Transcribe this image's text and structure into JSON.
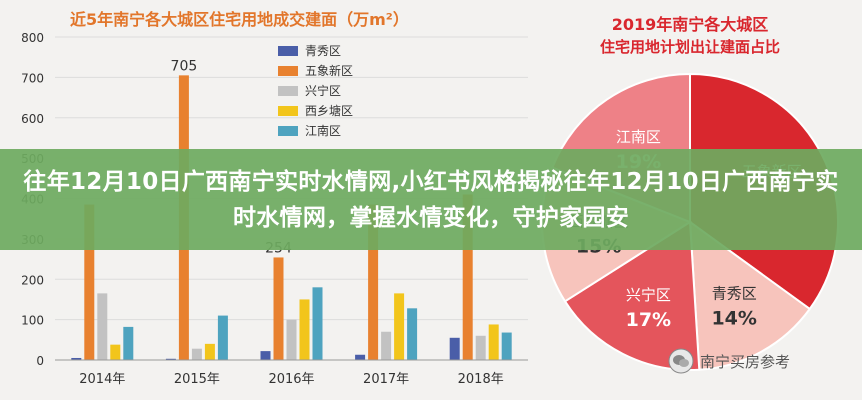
{
  "chart_data": [
    {
      "type": "bar",
      "title": "近5年南宁各大城区住宅用地成交建面（万m²）",
      "categories": [
        "2014年",
        "2015年",
        "2016年",
        "2017年",
        "2018年"
      ],
      "ylim": [
        0,
        800
      ],
      "yticks": [
        0,
        100,
        200,
        300,
        400,
        500,
        600,
        700,
        800
      ],
      "series": [
        {
          "name": "青秀区",
          "color": "#4a5ea8",
          "values": [
            5,
            3,
            22,
            13,
            55
          ]
        },
        {
          "name": "五象新区",
          "color": "#e8812f",
          "values": [
            385,
            705,
            254,
            385,
            410
          ]
        },
        {
          "name": "兴宁区",
          "color": "#c2c2c2",
          "values": [
            165,
            28,
            100,
            70,
            60
          ]
        },
        {
          "name": "西乡塘区",
          "color": "#f2c51b",
          "values": [
            38,
            40,
            150,
            165,
            88
          ]
        },
        {
          "name": "江南区",
          "color": "#4ea3bf",
          "values": [
            82,
            110,
            180,
            128,
            68
          ]
        }
      ],
      "data_labels": [
        {
          "category": "2015年",
          "series": "五象新区",
          "text": "705"
        },
        {
          "category": "2016年",
          "series": "五象新区",
          "text": "254"
        }
      ]
    },
    {
      "type": "pie",
      "title_line1": "2019年南宁各大城区",
      "title_line2": "住宅用地计划出让建面占比",
      "slices": [
        {
          "name": "五象新区",
          "value": 35,
          "label": "",
          "color": "#d9272e"
        },
        {
          "name": "青秀区",
          "value": 14,
          "label": "14%",
          "color": "#f7c4bc"
        },
        {
          "name": "兴宁区",
          "value": 17,
          "label": "17%",
          "color": "#e4555c"
        },
        {
          "name": "西乡塘区",
          "value": 15,
          "label": "15%",
          "color": "#f7c4bc"
        },
        {
          "name": "江南区",
          "value": 19,
          "label": "19%",
          "color": "#ee8187"
        }
      ]
    }
  ],
  "banner": {
    "text": "往年12月10日广西南宁实时水情网,小红书风格揭秘往年12月10日广西南宁实时水情网，掌握水情变化，守护家园安"
  },
  "watermark": {
    "text": "南宁买房参考"
  }
}
